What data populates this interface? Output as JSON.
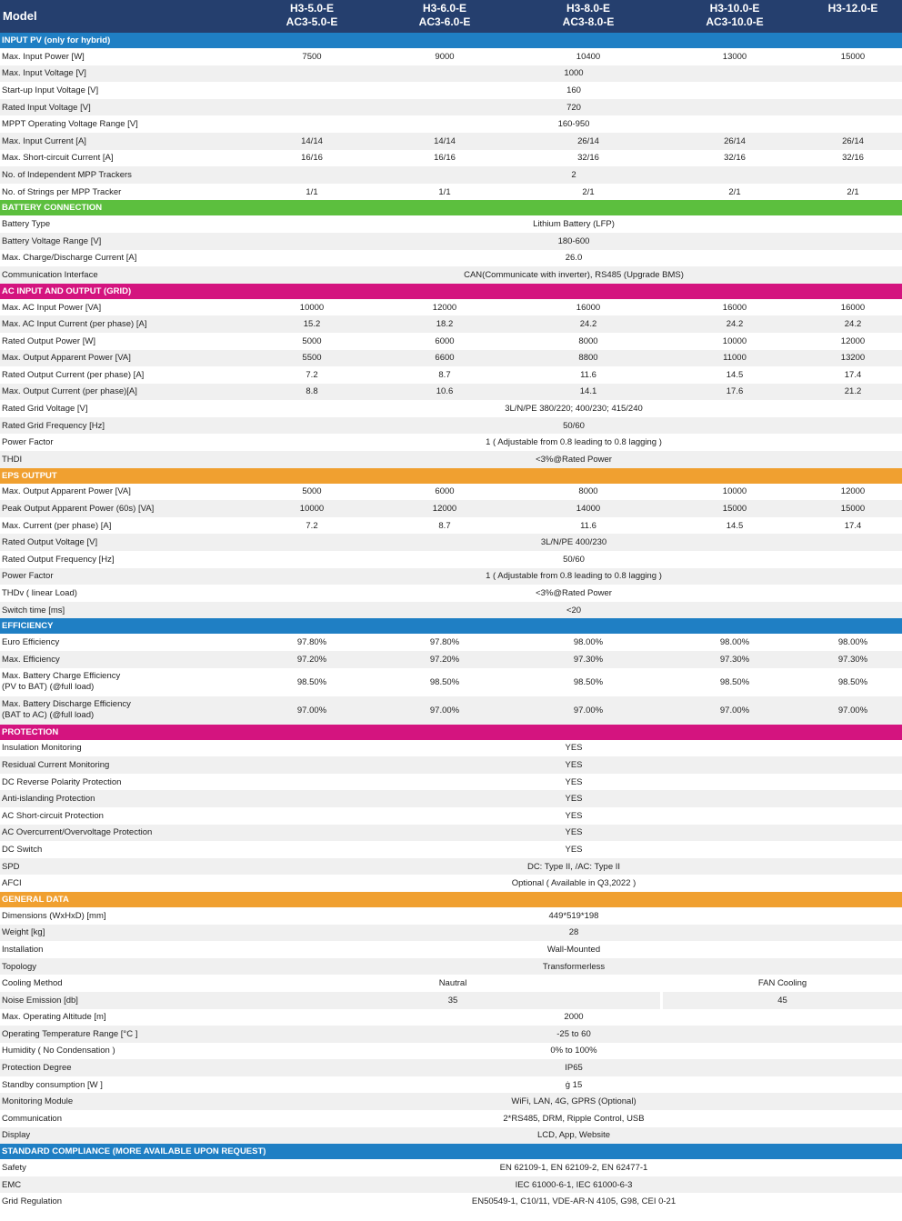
{
  "colors": {
    "header_bg": "#253f6e",
    "input_pv": "#1f7fc4",
    "battery": "#5cbf3e",
    "ac_grid": "#d4147f",
    "eps": "#f0a030",
    "efficiency": "#1f7fc4",
    "protection": "#d4147f",
    "general": "#f0a030",
    "compliance": "#1f7fc4"
  },
  "header": {
    "label": "Model",
    "models": [
      {
        "line1": "H3-5.0-E",
        "line2": "AC3-5.0-E"
      },
      {
        "line1": "H3-6.0-E",
        "line2": "AC3-6.0-E"
      },
      {
        "line1": "H3-8.0-E",
        "line2": "AC3-8.0-E"
      },
      {
        "line1": "H3-10.0-E",
        "line2": "AC3-10.0-E"
      },
      {
        "line1": "H3-12.0-E",
        "line2": ""
      }
    ]
  },
  "sections": [
    {
      "title": "INPUT PV (only for hybrid)",
      "color": "#1f7fc4",
      "rows": [
        {
          "label": "Max. Input Power [W]",
          "values": [
            "7500",
            "9000",
            "10400",
            "13000",
            "15000"
          ]
        },
        {
          "label": "Max. Input Voltage  [V]",
          "span": "1000"
        },
        {
          "label": "Start-up Input Voltage [V]",
          "span": "160"
        },
        {
          "label": "Rated Input Voltage [V]",
          "span": "720"
        },
        {
          "label": "MPPT Operating Voltage Range [V]",
          "span": "160-950"
        },
        {
          "label": "Max. Input Current [A]",
          "values": [
            "14/14",
            "14/14",
            "26/14",
            "26/14",
            "26/14"
          ]
        },
        {
          "label": "Max. Short-circuit Current [A]",
          "values": [
            "16/16",
            "16/16",
            "32/16",
            "32/16",
            "32/16"
          ]
        },
        {
          "label": "No. of Independent MPP Trackers",
          "span": "2"
        },
        {
          "label": "No. of Strings per MPP Tracker",
          "values": [
            "1/1",
            "1/1",
            "2/1",
            "2/1",
            "2/1"
          ]
        }
      ]
    },
    {
      "title": "BATTERY CONNECTION",
      "color": "#5cbf3e",
      "rows": [
        {
          "label": "Battery Type",
          "span": "Lithium Battery (LFP)"
        },
        {
          "label": "Battery Voltage Range [V]",
          "span": "180-600"
        },
        {
          "label": "Max. Charge/Discharge Current [A]",
          "span": "26.0"
        },
        {
          "label": "Communication Interface",
          "span": "CAN(Communicate with inverter), RS485 (Upgrade BMS)"
        }
      ]
    },
    {
      "title": "AC INPUT AND OUTPUT (GRID)",
      "color": "#d4147f",
      "rows": [
        {
          "label": "Max. AC Input Power [VA]",
          "values": [
            "10000",
            "12000",
            "16000",
            "16000",
            "16000"
          ]
        },
        {
          "label": "Max. AC Input Current (per phase) [A]",
          "values": [
            "15.2",
            "18.2",
            "24.2",
            "24.2",
            "24.2"
          ]
        },
        {
          "label": "Rated Output Power [W]",
          "values": [
            "5000",
            "6000",
            "8000",
            "10000",
            "12000"
          ]
        },
        {
          "label": "Max. Output Apparent Power [VA]",
          "values": [
            "5500",
            "6600",
            "8800",
            "11000",
            "13200"
          ]
        },
        {
          "label": "Rated Output Current (per phase) [A]",
          "values": [
            "7.2",
            "8.7",
            "11.6",
            "14.5",
            "17.4"
          ]
        },
        {
          "label": "Max. Output Current (per phase)[A]",
          "values": [
            "8.8",
            "10.6",
            "14.1",
            "17.6",
            "21.2"
          ]
        },
        {
          "label": "Rated Grid Voltage [V]",
          "span": "3L/N/PE  380/220; 400/230; 415/240"
        },
        {
          "label": "Rated Grid Frequency [Hz]",
          "span": "50/60"
        },
        {
          "label": "Power Factor",
          "span": "1 ( Adjustable from 0.8 leading to 0.8 lagging )"
        },
        {
          "label": "THDI",
          "span": "<3%@Rated Power"
        }
      ]
    },
    {
      "title": "EPS OUTPUT",
      "color": "#f0a030",
      "rows": [
        {
          "label": "Max. Output Apparent Power [VA]",
          "values": [
            "5000",
            "6000",
            "8000",
            "10000",
            "12000"
          ]
        },
        {
          "label": "Peak Output Apparent Power (60s) [VA]",
          "values": [
            "10000",
            "12000",
            "14000",
            "15000",
            "15000"
          ]
        },
        {
          "label": "Max. Current (per phase) [A]",
          "values": [
            "7.2",
            "8.7",
            "11.6",
            "14.5",
            "17.4"
          ]
        },
        {
          "label": "Rated Output Voltage [V]",
          "span": "3L/N/PE   400/230"
        },
        {
          "label": "Rated Output Frequency [Hz]",
          "span": "50/60"
        },
        {
          "label": "Power Factor",
          "span": "1 ( Adjustable from 0.8 leading to 0.8 lagging )"
        },
        {
          "label": "THDv ( linear Load)",
          "span": "<3%@Rated Power"
        },
        {
          "label": "Switch time [ms]",
          "span": "<20"
        }
      ]
    },
    {
      "title": "EFFICIENCY",
      "color": "#1f7fc4",
      "rows": [
        {
          "label": "Euro Efficiency",
          "values": [
            "97.80%",
            "97.80%",
            "98.00%",
            "98.00%",
            "98.00%"
          ]
        },
        {
          "label": "Max. Efficiency",
          "values": [
            "97.20%",
            "97.20%",
            "97.30%",
            "97.30%",
            "97.30%"
          ]
        },
        {
          "label": "Max. Battery Charge Efficiency",
          "label2": "(PV to BAT) (@full load)",
          "values": [
            "98.50%",
            "98.50%",
            "98.50%",
            "98.50%",
            "98.50%"
          ]
        },
        {
          "label": "Max. Battery Discharge Efficiency",
          "label2": "(BAT to AC) (@full load)",
          "values": [
            "97.00%",
            "97.00%",
            "97.00%",
            "97.00%",
            "97.00%"
          ]
        }
      ]
    },
    {
      "title": "PROTECTION",
      "color": "#d4147f",
      "rows": [
        {
          "label": "Insulation Monitoring",
          "span": "YES"
        },
        {
          "label": "Residual Current Monitoring",
          "span": "YES"
        },
        {
          "label": "DC Reverse Polarity Protection",
          "span": "YES"
        },
        {
          "label": "Anti-islanding Protection",
          "span": "YES"
        },
        {
          "label": "AC Short-circuit Protection",
          "span": "YES"
        },
        {
          "label": "AC Overcurrent/Overvoltage Protection",
          "span": "YES"
        },
        {
          "label": "DC Switch",
          "span": "YES"
        },
        {
          "label": "SPD",
          "span": "DC: Type II, /AC: Type II"
        },
        {
          "label": "AFCI",
          "span": "Optional ( Available in Q3,2022 )"
        }
      ]
    },
    {
      "title": "GENERAL DATA",
      "color": "#f0a030",
      "rows": [
        {
          "label": "Dimensions (WxHxD) [mm]",
          "span": "449*519*198"
        },
        {
          "label": "Weight [kg]",
          "span": "28"
        },
        {
          "label": "Installation",
          "span": "Wall-Mounted"
        },
        {
          "label": "Topology",
          "span": "Transformerless"
        },
        {
          "label": "Cooling Method",
          "split": [
            "Nautral",
            "FAN Cooling"
          ]
        },
        {
          "label": "Noise Emission [db]",
          "split": [
            "35",
            "45"
          ]
        },
        {
          "label": "Max. Operating Altitude [m]",
          "span": "2000"
        },
        {
          "label": "Operating Temperature Range [°C ]",
          "span": "-25 to 60"
        },
        {
          "label": "Humidity ( No Condensation )",
          "span": "0% to 100%"
        },
        {
          "label": "Protection Degree",
          "span": "IP65"
        },
        {
          "label": "Standby consumption [W ]",
          "span": "ġ  15"
        },
        {
          "label": "Monitoring Module",
          "span": "WiFi, LAN, 4G, GPRS (Optional)"
        },
        {
          "label": "Communication",
          "span": "2*RS485, DRM, Ripple Control, USB"
        },
        {
          "label": "Display",
          "span": "LCD, App, Website"
        }
      ]
    },
    {
      "title": "STANDARD COMPLIANCE (MORE AVAILABLE UPON REQUEST)",
      "color": "#1f7fc4",
      "rows": [
        {
          "label": "Safety",
          "span": "EN 62109-1, EN 62109-2, EN 62477-1"
        },
        {
          "label": "EMC",
          "span": "IEC 61000-6-1, IEC 61000-6-3"
        },
        {
          "label": "Grid Regulation",
          "span": "EN50549-1, C10/11, VDE-AR-N 4105, G98, CEI 0-21"
        }
      ]
    }
  ]
}
